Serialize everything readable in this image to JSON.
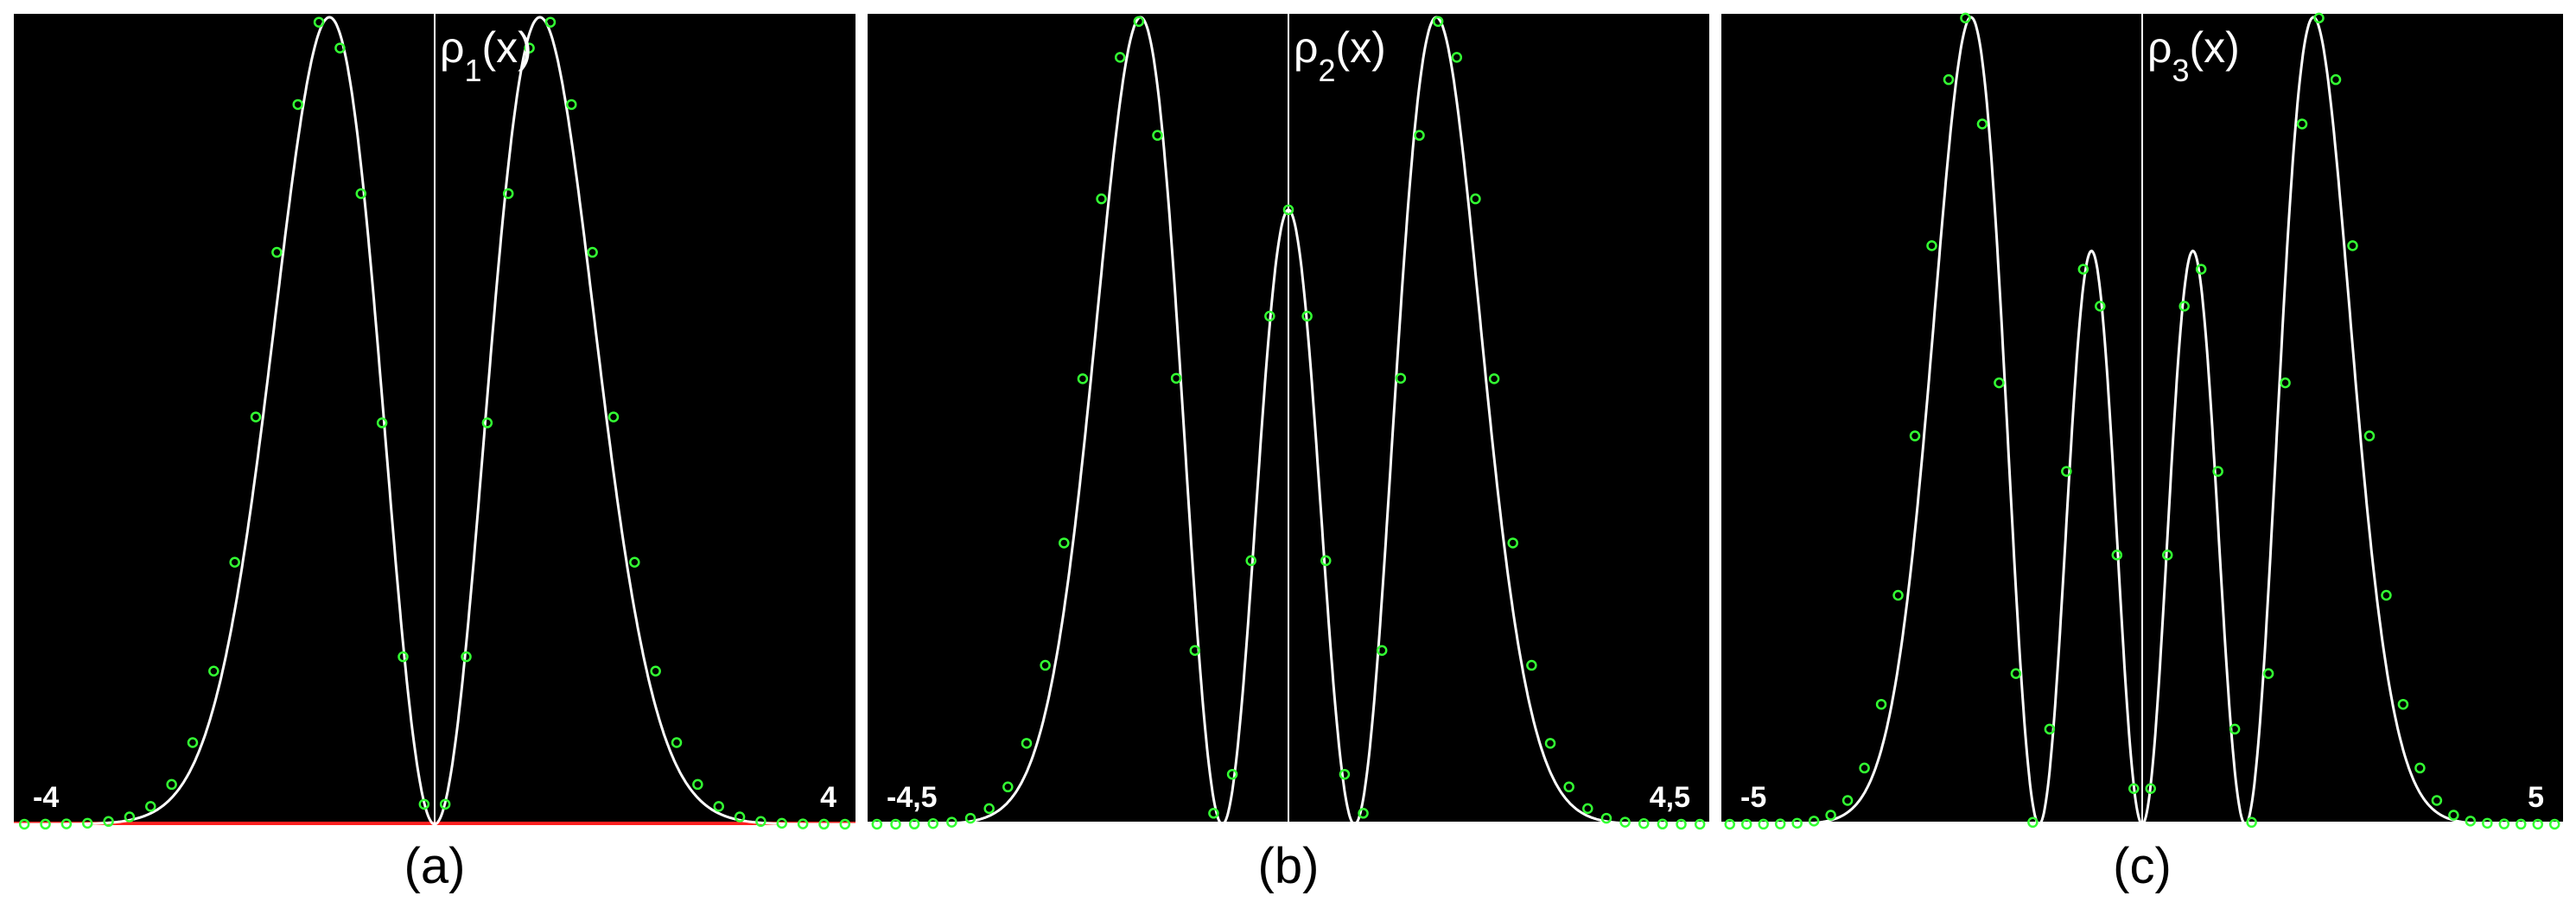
{
  "figure": {
    "background": "#000000",
    "curve_color": "#ffffff",
    "marker_color": "#33ff33",
    "baseline_color": "#ff2020"
  },
  "chart_data": [
    {
      "type": "line",
      "caption": "(a)",
      "ylabel_base": "ρ",
      "ylabel_sub": "1",
      "ylabel_tail": "(x)",
      "xlim": [
        -4,
        4
      ],
      "xmin_label": "-4",
      "xmax_label": "4",
      "n": 1,
      "series": [
        {
          "style": "line",
          "curve": "exact"
        },
        {
          "style": "markers",
          "curve": "approx",
          "x": [
            -3.9,
            -3.7,
            -3.5,
            -3.3,
            -3.1,
            -2.9,
            -2.7,
            -2.5,
            -2.3,
            -2.1,
            -1.9,
            -1.7,
            -1.5,
            -1.3,
            -1.1,
            -0.9,
            -0.7,
            -0.5,
            -0.3,
            -0.1,
            0.1,
            0.3,
            0.5,
            0.7,
            0.9,
            1.1,
            1.3,
            1.5,
            1.7,
            1.9,
            2.1,
            2.3,
            2.5,
            2.7,
            2.9,
            3.1,
            3.3,
            3.5,
            3.7,
            3.9
          ]
        }
      ]
    },
    {
      "type": "line",
      "caption": "(b)",
      "ylabel_base": "ρ",
      "ylabel_sub": "2",
      "ylabel_tail": "(x)",
      "xlim": [
        -4.5,
        4.5
      ],
      "xmin_label": "-4,5",
      "xmax_label": "4,5",
      "n": 2,
      "series": [
        {
          "style": "line",
          "curve": "exact"
        },
        {
          "style": "markers",
          "curve": "approx",
          "x": [
            -4.4,
            -4.2,
            -4.0,
            -3.8,
            -3.6,
            -3.4,
            -3.2,
            -3.0,
            -2.8,
            -2.6,
            -2.4,
            -2.2,
            -2.0,
            -1.8,
            -1.6,
            -1.4,
            -1.2,
            -1.0,
            -0.8,
            -0.6,
            -0.4,
            -0.2,
            0.0,
            0.2,
            0.4,
            0.6,
            0.8,
            1.0,
            1.2,
            1.4,
            1.6,
            1.8,
            2.0,
            2.2,
            2.4,
            2.6,
            2.8,
            3.0,
            3.2,
            3.4,
            3.6,
            3.8,
            4.0,
            4.2,
            4.4
          ]
        }
      ]
    },
    {
      "type": "line",
      "caption": "(c)",
      "ylabel_base": "ρ",
      "ylabel_sub": "3",
      "ylabel_tail": "(x)",
      "xlim": [
        -5,
        5
      ],
      "xmin_label": "-5",
      "xmax_label": "5",
      "n": 3,
      "series": [
        {
          "style": "line",
          "curve": "exact"
        },
        {
          "style": "markers",
          "curve": "approx",
          "x": [
            -4.9,
            -4.7,
            -4.5,
            -4.3,
            -4.1,
            -3.9,
            -3.7,
            -3.5,
            -3.3,
            -3.1,
            -2.9,
            -2.7,
            -2.5,
            -2.3,
            -2.1,
            -1.9,
            -1.7,
            -1.5,
            -1.3,
            -1.1,
            -0.9,
            -0.7,
            -0.5,
            -0.3,
            -0.1,
            0.1,
            0.3,
            0.5,
            0.7,
            0.9,
            1.1,
            1.3,
            1.5,
            1.7,
            1.9,
            2.1,
            2.3,
            2.5,
            2.7,
            2.9,
            3.1,
            3.3,
            3.5,
            3.7,
            3.9,
            4.1,
            4.3,
            4.5,
            4.7,
            4.9
          ]
        }
      ]
    }
  ]
}
